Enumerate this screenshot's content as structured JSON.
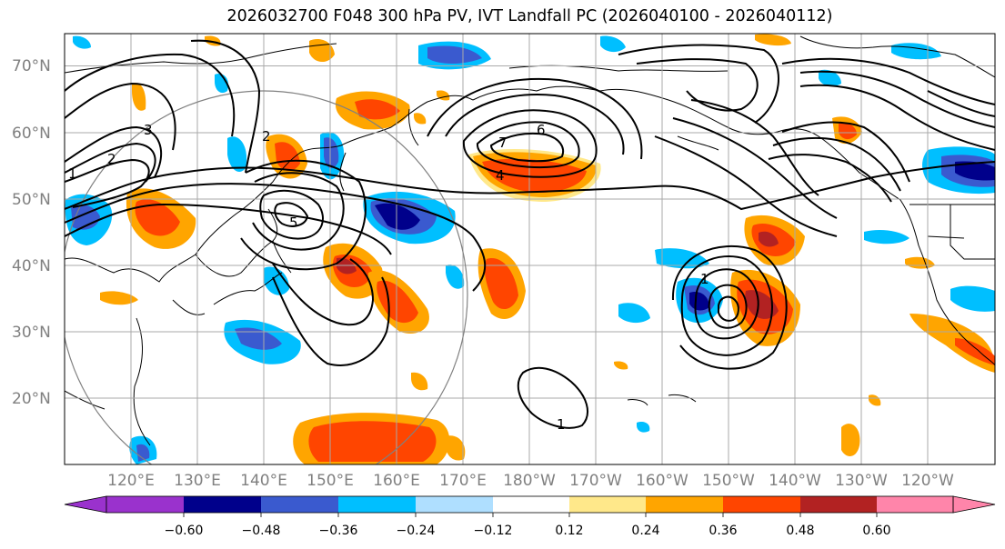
{
  "title": "2026032700 F048 300 hPa PV, IVT Landfall PC (2026040100 - 2026040112)",
  "map": {
    "projection": "PlateCarree",
    "lat_labels": [
      "70°N",
      "60°N",
      "50°N",
      "40°N",
      "30°N",
      "20°N"
    ],
    "lon_labels": [
      "120°E",
      "130°E",
      "140°E",
      "150°E",
      "160°E",
      "170°E",
      "180°W",
      "170°W",
      "160°W",
      "150°W",
      "140°W",
      "130°W",
      "120°W"
    ],
    "contour_labels": [
      "1",
      "2",
      "3",
      "4",
      "5",
      "6",
      "7",
      "1",
      "2",
      "1"
    ],
    "colors": {
      "coast": "#000000",
      "grid": "#a9a9a9",
      "ring": "#808080"
    }
  },
  "colorbar": {
    "tick_labels": [
      "−0.60",
      "−0.48",
      "−0.36",
      "−0.24",
      "−0.12",
      "0.12",
      "0.24",
      "0.36",
      "0.48",
      "0.60"
    ],
    "colors": [
      "#9a32cd",
      "#00008b",
      "#3a5acf",
      "#00bfff",
      "#afdfff",
      "#ffffff",
      "#ffe88a",
      "#ffa500",
      "#ff4500",
      "#b22222",
      "#ff85aa"
    ]
  }
}
